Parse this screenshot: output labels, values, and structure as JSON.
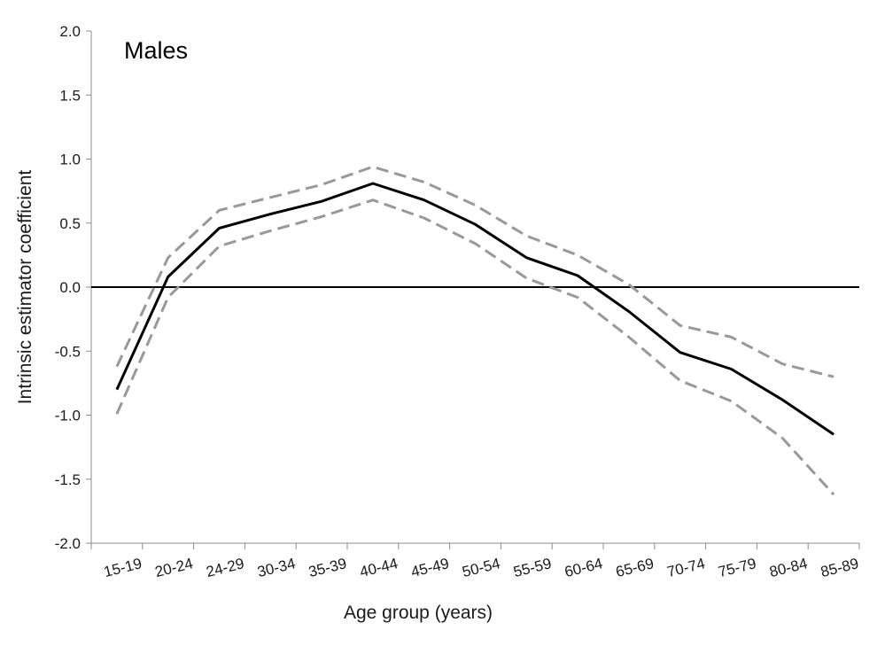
{
  "chart_data": {
    "type": "line",
    "title": "Males",
    "xlabel": "Age group (years)",
    "ylabel": "Intrinsic estimator coefficient",
    "ylim": [
      -2.0,
      2.0
    ],
    "yticks": [
      2.0,
      1.5,
      1.0,
      0.5,
      0.0,
      -0.5,
      -1.0,
      -1.5,
      -2.0
    ],
    "ytick_labels": [
      "2.0",
      "1.5",
      "1.0",
      "0.5",
      "0.0",
      "-0.5",
      "-1.0",
      "-1.5",
      "-2.0"
    ],
    "categories": [
      "15-19",
      "20-24",
      "24-29",
      "30-34",
      "35-39",
      "40-44",
      "45-49",
      "50-54",
      "55-59",
      "60-64",
      "65-69",
      "70-74",
      "75-79",
      "80-84",
      "85-89"
    ],
    "reference_line": 0.0,
    "grid": false,
    "legend": "none",
    "series": [
      {
        "style": "solid",
        "color": "#000000",
        "values": [
          -0.8,
          0.08,
          0.46,
          0.57,
          0.67,
          0.81,
          0.68,
          0.49,
          0.23,
          0.09,
          -0.19,
          -0.51,
          -0.64,
          -0.88,
          -1.15
        ]
      },
      {
        "style": "dashed",
        "color": "#999999",
        "values": [
          -0.62,
          0.23,
          0.6,
          0.7,
          0.8,
          0.94,
          0.82,
          0.64,
          0.4,
          0.25,
          0.02,
          -0.3,
          -0.39,
          -0.6,
          -0.7
        ]
      },
      {
        "style": "dashed",
        "color": "#999999",
        "values": [
          -0.99,
          -0.08,
          0.32,
          0.44,
          0.55,
          0.68,
          0.54,
          0.34,
          0.07,
          -0.08,
          -0.39,
          -0.73,
          -0.89,
          -1.18,
          -1.62
        ]
      }
    ]
  }
}
